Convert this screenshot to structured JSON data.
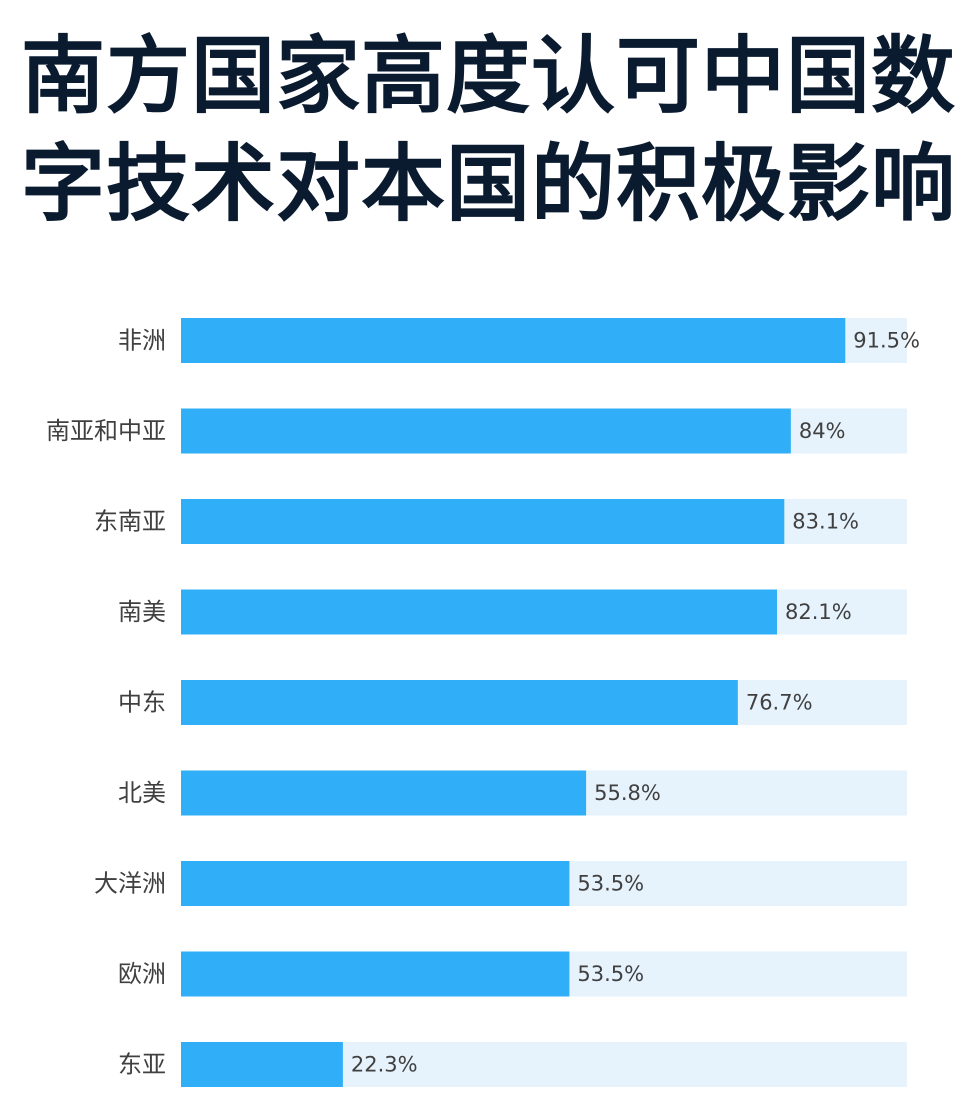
{
  "title_lines": [
    "南方国家高度认可中国数",
    "字技术对本国的积极影响"
  ],
  "colors": {
    "bar": "#30aff8",
    "track": "#e6f3fd",
    "title": "#0a1a2f",
    "label": "#404040"
  },
  "chart_data": {
    "type": "bar",
    "orientation": "horizontal",
    "title": "南方国家高度认可中国数字技术对本国的积极影响",
    "categories": [
      "非洲",
      "南亚和中亚",
      "东南亚",
      "南美",
      "中东",
      "北美",
      "大洋洲",
      "欧洲",
      "东亚"
    ],
    "values": [
      91.5,
      84,
      83.1,
      82.1,
      76.7,
      55.8,
      53.5,
      53.5,
      22.3
    ],
    "value_labels": [
      "91.5%",
      "84%",
      "83.1%",
      "82.1%",
      "76.7%",
      "55.8%",
      "53.5%",
      "53.5%",
      "22.3%"
    ],
    "xlim": [
      0,
      100
    ],
    "unit": "%",
    "grid": false,
    "legend": "none"
  }
}
